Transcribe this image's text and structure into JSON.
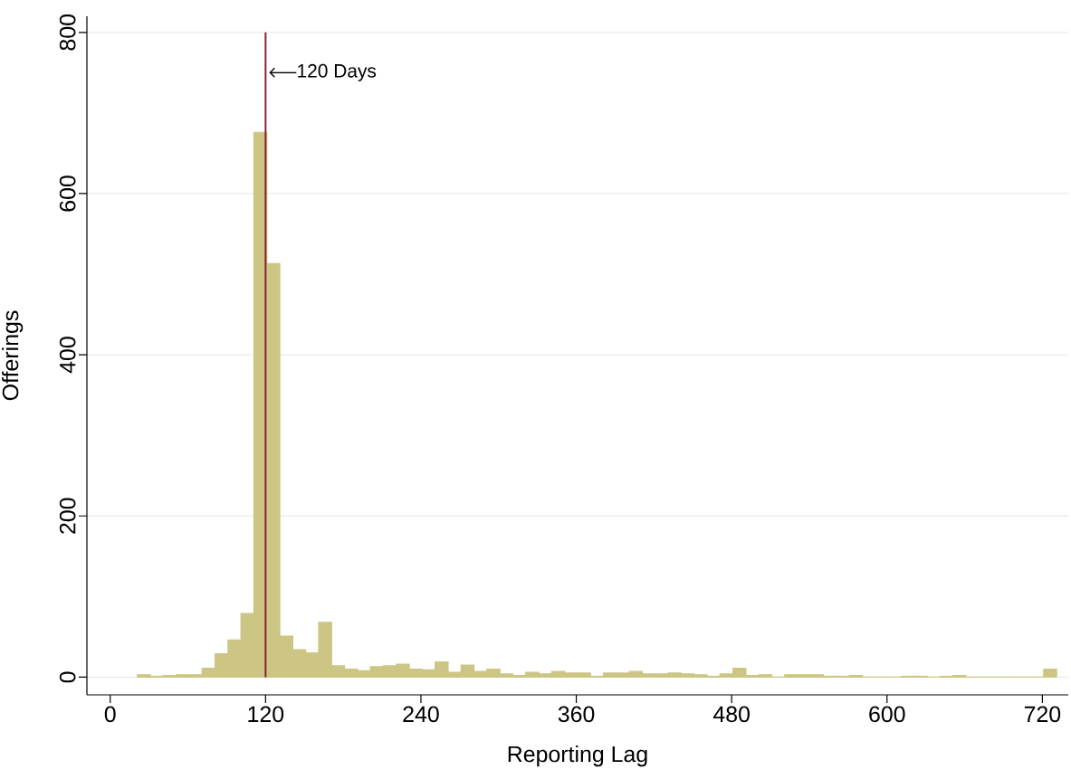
{
  "chart_data": {
    "type": "histogram",
    "xlabel": "Reporting Lag",
    "ylabel": "Offerings",
    "color": "#cdc583",
    "bins": [
      21,
      31,
      41,
      51,
      61,
      71,
      81,
      91,
      101,
      111,
      121,
      131,
      141,
      151,
      161,
      171,
      181,
      191,
      201,
      211,
      221,
      231,
      241,
      251,
      261,
      271,
      281,
      291,
      301,
      311,
      321,
      331,
      341,
      351,
      361,
      371,
      381,
      391,
      401,
      411,
      421,
      431,
      441,
      451,
      461,
      471,
      481,
      491,
      501,
      511,
      521,
      531,
      541,
      551,
      561,
      571,
      581,
      591,
      601,
      611,
      621,
      631,
      641,
      651,
      661,
      671,
      681,
      691,
      701,
      711,
      721,
      731
    ],
    "values": [
      3,
      1,
      2,
      3,
      3,
      11,
      29,
      46,
      79,
      676,
      513,
      51,
      34,
      30,
      68,
      14,
      10,
      8,
      13,
      14,
      16,
      10,
      9,
      19,
      6,
      15,
      7,
      10,
      4,
      2,
      6,
      4,
      7,
      5,
      5,
      1,
      5,
      5,
      7,
      4,
      4,
      5,
      4,
      3,
      1,
      4,
      11,
      2,
      3,
      0,
      3,
      3,
      3,
      1,
      1,
      2,
      0,
      0,
      0,
      1,
      1,
      0,
      1,
      2,
      0,
      0,
      0,
      0,
      0,
      0,
      10
    ],
    "xlim": [
      -18,
      740
    ],
    "ylim": [
      -22,
      820
    ],
    "xticks": [
      0,
      120,
      240,
      360,
      480,
      600,
      720
    ],
    "yticks": [
      0,
      200,
      400,
      600,
      800
    ],
    "grid": "y",
    "ref_lines": [
      {
        "axis": "x",
        "value": 120,
        "color": "#8b2232"
      }
    ],
    "annotations": [
      {
        "text": "120 Days",
        "x": 120,
        "y": 750
      }
    ]
  }
}
